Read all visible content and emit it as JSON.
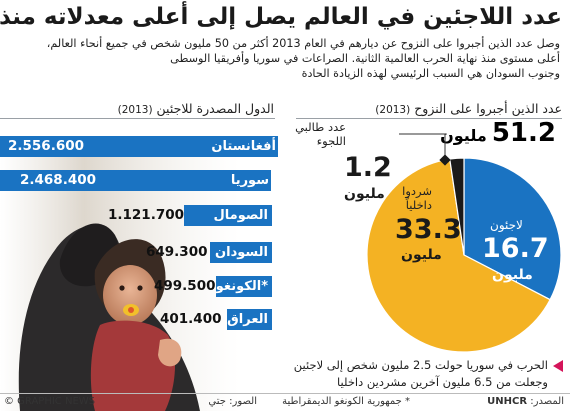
{
  "header": {
    "title": "عدد اللاجئين في العالم يصل إلى أعلى معدلاته منذ الحرب الثانية",
    "subtitle_lines": [
      "وصل عدد الذين أجبروا على النزوح عن ديارهم في العام 2013 أكثر من 50 مليون شخص في جميع أنحاء العالم،",
      "أعلى مستوى منذ نهاية الحرب العالمية الثانية. الصراعات في سوريا وأفريقيا الوسطى",
      "وجنوب السودان هي السبب الرئيسي لهذه الزيادة الحادة"
    ]
  },
  "chart_data": [
    {
      "type": "bar",
      "title": "الدول المصدرة للاجئين",
      "title_year": "(2013)",
      "categories": [
        "أفغانستان",
        "سوريا",
        "الصومال",
        "السودان",
        "الكونغو*",
        "العراق"
      ],
      "values": [
        2556600,
        2468400,
        1121700,
        649300,
        499500,
        401400
      ],
      "value_labels": [
        "2.556.600",
        "2.468.400",
        "1.121.700",
        "649.300",
        "499.500",
        "401.400"
      ]
    },
    {
      "type": "pie",
      "title": "عدد الذين أجبروا على النزوح",
      "title_year": "(2013)",
      "total_value": "51.2",
      "total_unit": "مليون",
      "slices": [
        {
          "label": "لاجئون",
          "value": 16.7,
          "value_text": "16.7",
          "unit": "مليون",
          "color": "#1a73c2"
        },
        {
          "label_lines": [
            "شردوا",
            "داخلياً"
          ],
          "value": 33.3,
          "value_text": "33.3",
          "unit": "مليون",
          "color": "#f4b223"
        },
        {
          "label_lines": [
            "عدد طالبي",
            "اللجوء"
          ],
          "value": 1.2,
          "value_text": "1.2",
          "unit": "مليون",
          "color": "#1a1a1a"
        }
      ]
    }
  ],
  "notes": {
    "syria_lines": [
      "الحرب في سوريا حولت 2.5 مليون شخص إلى لاجئين",
      "وجعلت من 6.5 مليون آخرين مشردين داخليا"
    ],
    "footnote": "* جمهورية الكونغو الديمقراطية",
    "source_label": "المصدر:",
    "source_value": "UNHCR",
    "photo_credit": "الصور: جتي",
    "brand": "© GRAPHIC NEWS"
  },
  "colors": {
    "bar": "#1a73c2",
    "refugees": "#1a73c2",
    "displaced": "#f4b223",
    "asylum": "#1a1a1a",
    "accent_triangle": "#d4145a"
  },
  "icons": [
    "photo-silhouette",
    "triangle-bullet-icon"
  ]
}
